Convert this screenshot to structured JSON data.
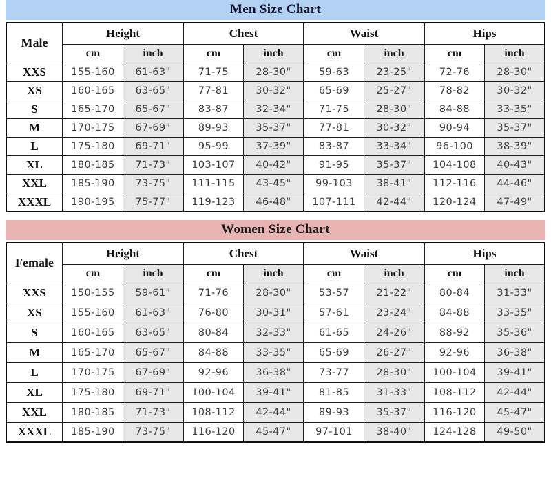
{
  "page": {
    "background": "#ffffff"
  },
  "charts": [
    {
      "title": "Men Size Chart",
      "banner_color": "#b3d1f2",
      "title_color": "#10102a",
      "label_header": "Male",
      "groups": [
        "Height",
        "Chest",
        "Waist",
        "Hips"
      ],
      "units": [
        "cm",
        "inch"
      ],
      "shade_color": "#e7e7e7",
      "rows": [
        {
          "size": "XXS",
          "values": [
            "155-160",
            "61-63\"",
            "71-75",
            "28-30\"",
            "59-63",
            "23-25\"",
            "72-76",
            "28-30\""
          ]
        },
        {
          "size": "XS",
          "values": [
            "160-165",
            "63-65\"",
            "77-81",
            "30-32\"",
            "65-69",
            "25-27\"",
            "78-82",
            "30-32\""
          ]
        },
        {
          "size": "S",
          "values": [
            "165-170",
            "65-67\"",
            "83-87",
            "32-34\"",
            "71-75",
            "28-30\"",
            "84-88",
            "33-35\""
          ]
        },
        {
          "size": "M",
          "values": [
            "170-175",
            "67-69\"",
            "89-93",
            "35-37\"",
            "77-81",
            "30-32\"",
            "90-94",
            "35-37\""
          ]
        },
        {
          "size": "L",
          "values": [
            "175-180",
            "69-71\"",
            "95-99",
            "37-39\"",
            "83-87",
            "33-34\"",
            "96-100",
            "38-39\""
          ]
        },
        {
          "size": "XL",
          "values": [
            "180-185",
            "71-73\"",
            "103-107",
            "40-42\"",
            "91-95",
            "35-37\"",
            "104-108",
            "40-43\""
          ]
        },
        {
          "size": "XXL",
          "values": [
            "185-190",
            "73-75\"",
            "111-115",
            "43-45\"",
            "99-103",
            "38-41\"",
            "112-116",
            "44-46\""
          ]
        },
        {
          "size": "XXXL",
          "values": [
            "190-195",
            "75-77\"",
            "119-123",
            "46-48\"",
            "107-111",
            "42-44\"",
            "120-124",
            "47-49\""
          ]
        }
      ]
    },
    {
      "title": "Women Size Chart",
      "banner_color": "#e8b3b3",
      "title_color": "#161616",
      "label_header": "Female",
      "groups": [
        "Height",
        "Chest",
        "Waist",
        "Hips"
      ],
      "units": [
        "cm",
        "inch"
      ],
      "shade_color": "#e7e7e7",
      "rows": [
        {
          "size": "XXS",
          "values": [
            "150-155",
            "59-61\"",
            "71-76",
            "28-30\"",
            "53-57",
            "21-22\"",
            "80-84",
            "31-33\""
          ]
        },
        {
          "size": "XS",
          "values": [
            "155-160",
            "61-63\"",
            "76-80",
            "30-31\"",
            "57-61",
            "23-24\"",
            "84-88",
            "33-35\""
          ]
        },
        {
          "size": "S",
          "values": [
            "160-165",
            "63-65\"",
            "80-84",
            "32-33\"",
            "61-65",
            "24-26\"",
            "88-92",
            "35-36\""
          ]
        },
        {
          "size": "M",
          "values": [
            "165-170",
            "65-67\"",
            "84-88",
            "33-35\"",
            "65-69",
            "26-27\"",
            "92-96",
            "36-38\""
          ]
        },
        {
          "size": "L",
          "values": [
            "170-175",
            "67-69\"",
            "92-96",
            "36-38\"",
            "73-77",
            "28-30\"",
            "100-104",
            "39-41\""
          ]
        },
        {
          "size": "XL",
          "values": [
            "175-180",
            "69-71\"",
            "100-104",
            "39-41\"",
            "81-85",
            "31-33\"",
            "108-112",
            "42-44\""
          ]
        },
        {
          "size": "XXL",
          "values": [
            "180-185",
            "71-73\"",
            "108-112",
            "42-44\"",
            "89-93",
            "35-37\"",
            "116-120",
            "45-47\""
          ]
        },
        {
          "size": "XXXL",
          "values": [
            "185-190",
            "73-75\"",
            "116-120",
            "45-47\"",
            "97-101",
            "38-40\"",
            "124-128",
            "49-50\""
          ]
        }
      ]
    }
  ]
}
